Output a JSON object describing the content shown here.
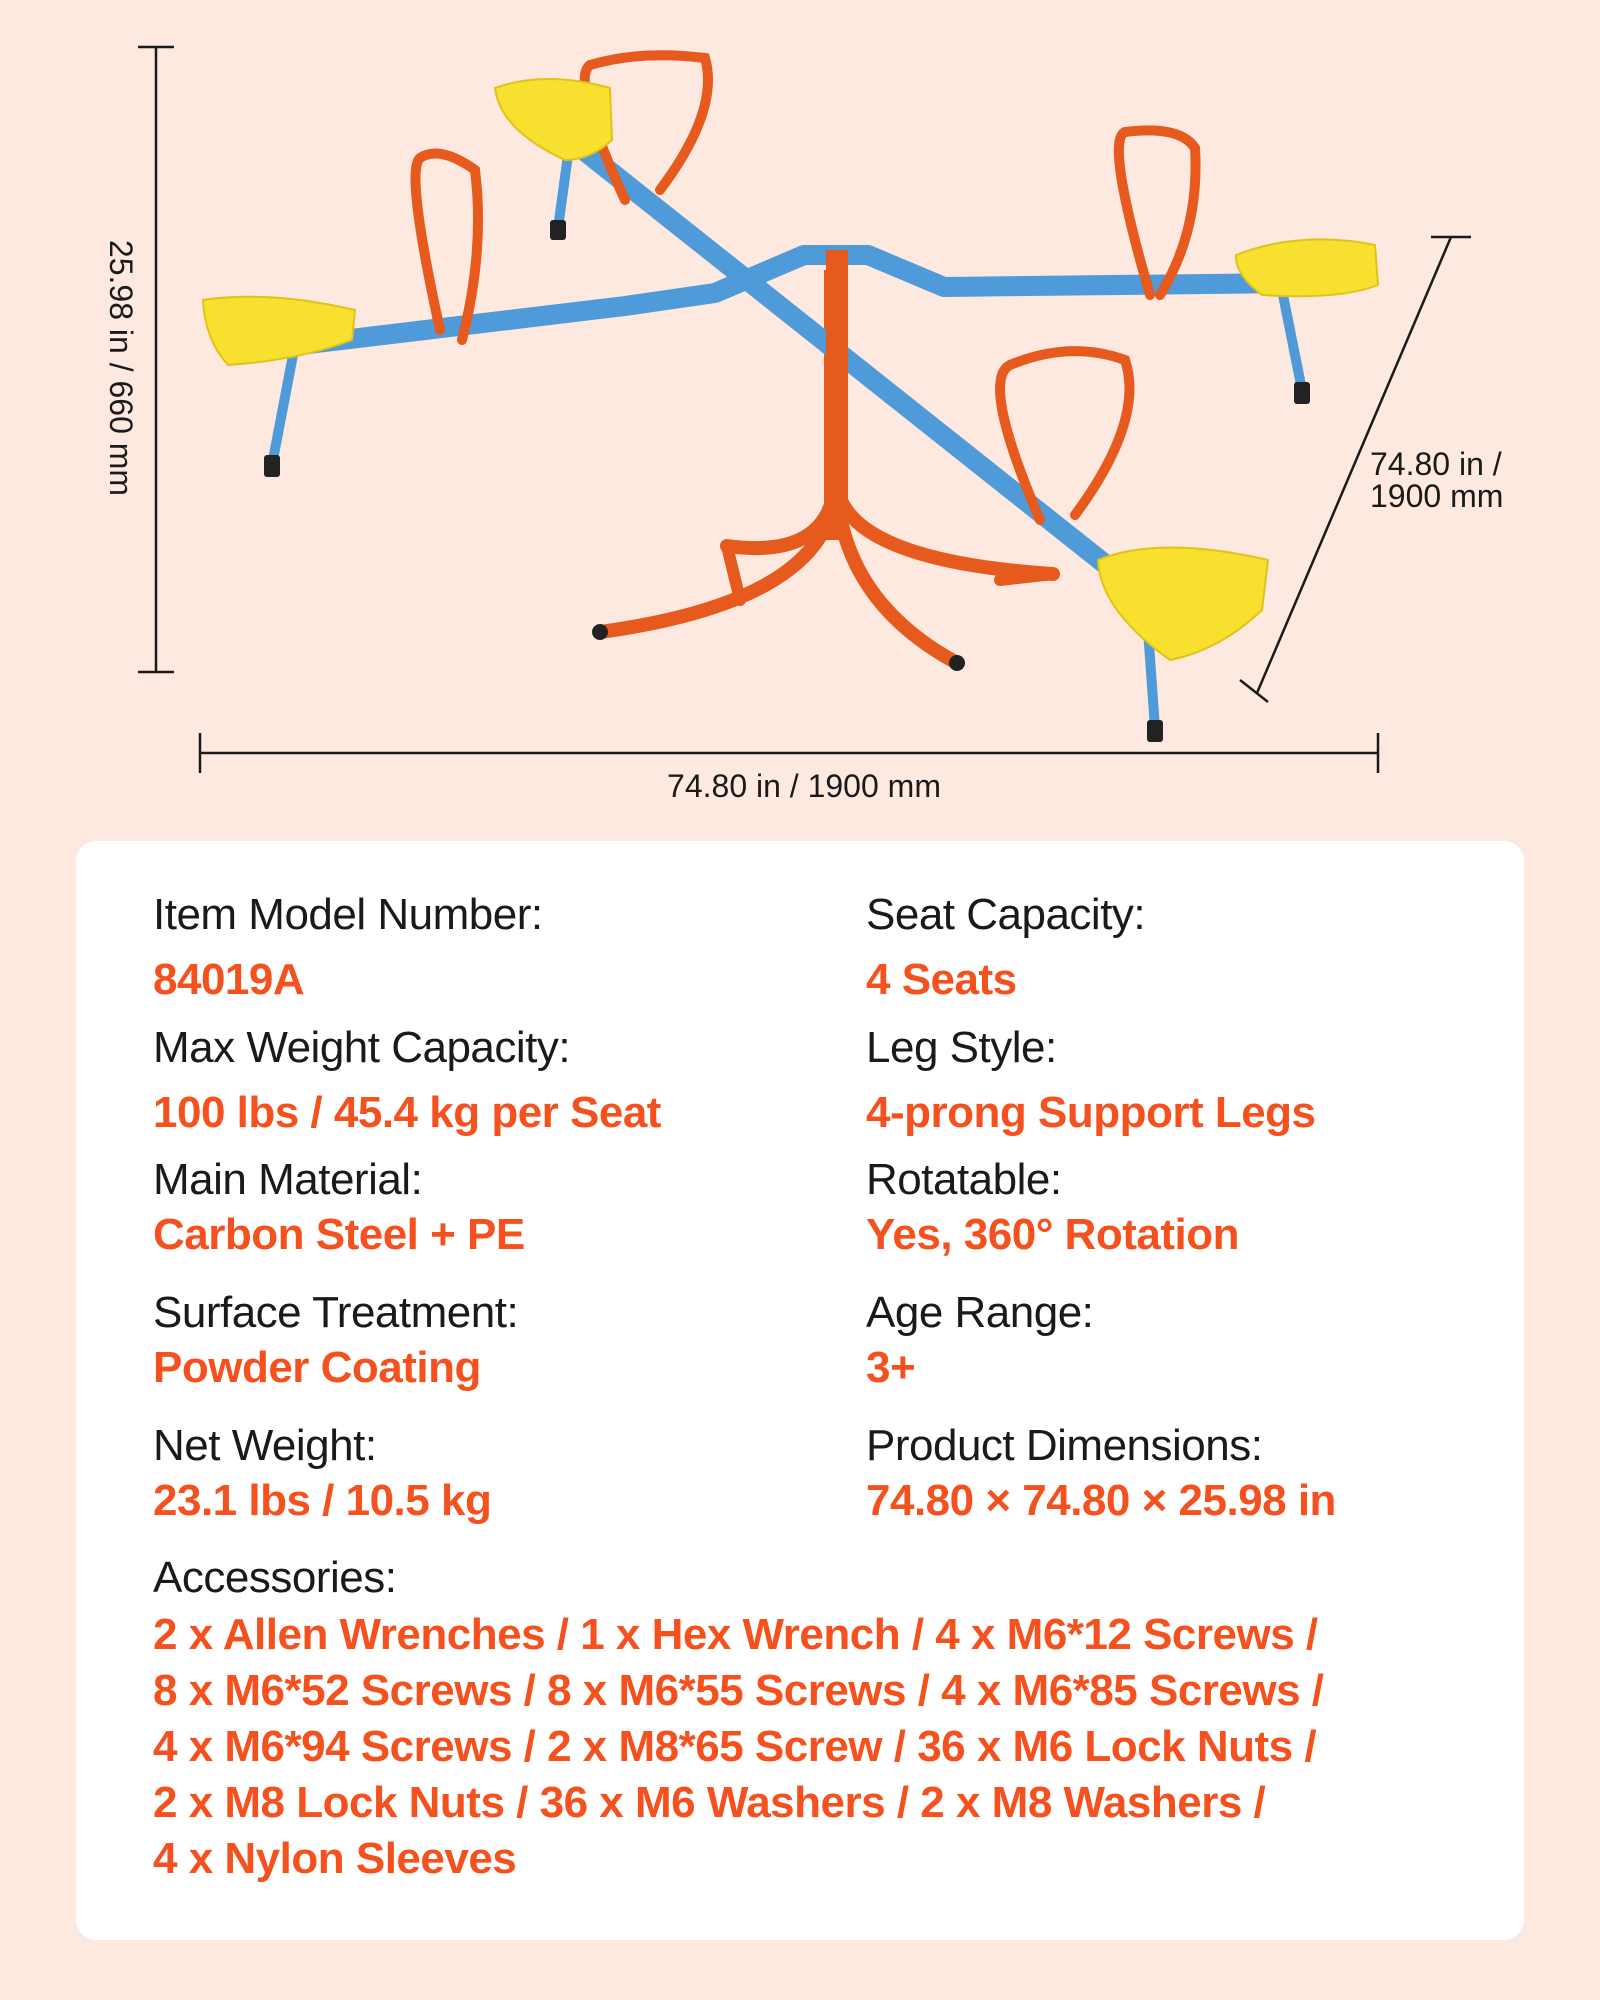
{
  "dimensions": {
    "height": "25.98 in / 660 mm",
    "width": "74.80 in / 1900 mm",
    "depth_line1": "74.80 in /",
    "depth_line2": "1900 mm"
  },
  "colors": {
    "accent": "#f4511e",
    "background": "#fde9df",
    "beam": "#4f9bd9",
    "frame": "#e65a1e",
    "seat": "#f7e12e"
  },
  "specs": {
    "left": [
      {
        "label": "Item Model Number:",
        "value": "84019A"
      },
      {
        "label": "Max Weight Capacity:",
        "value": "100 lbs / 45.4 kg per Seat"
      },
      {
        "label": "Main Material:",
        "value": "Carbon Steel + PE"
      },
      {
        "label": "Surface Treatment:",
        "value": "Powder Coating"
      },
      {
        "label": "Net Weight:",
        "value": "23.1 lbs / 10.5 kg"
      }
    ],
    "right": [
      {
        "label": "Seat Capacity:",
        "value": "4 Seats"
      },
      {
        "label": "Leg Style:",
        "value": "4-prong Support Legs"
      },
      {
        "label": "Rotatable:",
        "value": "Yes, 360° Rotation"
      },
      {
        "label": "Age Range:",
        "value": "3+"
      },
      {
        "label": "Product Dimensions:",
        "value": "74.80 × 74.80 × 25.98 in"
      }
    ]
  },
  "accessories": {
    "label": "Accessories:",
    "lines": [
      "2 x Allen Wrenches / 1 x Hex Wrench / 4 x M6*12 Screws /",
      "8 x M6*52 Screws / 8 x M6*55 Screws / 4 x M6*85 Screws /",
      "4 x M6*94 Screws / 2 x M8*65 Screw / 36 x M6 Lock Nuts /",
      "2 x M8 Lock Nuts / 36 x M6 Washers / 2 x M8 Washers /",
      "4 x Nylon Sleeves"
    ]
  }
}
